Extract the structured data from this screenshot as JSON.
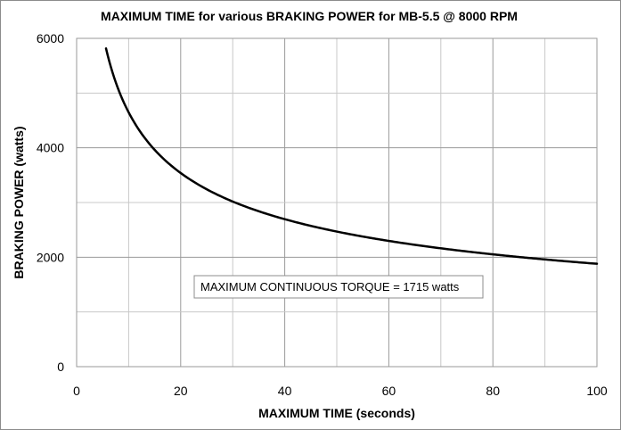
{
  "chart_data": {
    "type": "line",
    "title": "MAXIMUM TIME for various BRAKING POWER for MB-5.5 @ 8000 RPM",
    "xlabel": "MAXIMUM TIME (seconds)",
    "ylabel": "BRAKING POWER (watts)",
    "xlim": [
      0,
      100
    ],
    "ylim": [
      0,
      6000
    ],
    "x_ticks": [
      "0",
      "20",
      "40",
      "60",
      "80",
      "100"
    ],
    "y_ticks": [
      "0",
      "2000",
      "4000",
      "6000"
    ],
    "grid": true,
    "legend": "none",
    "annotation": "MAXIMUM CONTINUOUS TORQUE = 1715 watts",
    "line_color": "#000000",
    "series": [
      {
        "x": [
          5.65,
          6,
          7,
          8,
          9,
          10,
          12,
          14,
          16,
          18,
          20,
          25,
          30,
          35,
          40,
          45,
          50,
          55,
          60,
          65,
          70,
          75,
          80,
          85,
          90,
          95,
          100
        ],
        "values": [
          6000,
          5850,
          5470,
          5150,
          4870,
          4630,
          4240,
          3930,
          3690,
          3480,
          3570,
          3210,
          2990,
          2820,
          2690,
          2580,
          2490,
          2410,
          2330,
          2260,
          2190,
          2130,
          2070,
          2010,
          1960,
          1910,
          1870
        ]
      }
    ]
  }
}
